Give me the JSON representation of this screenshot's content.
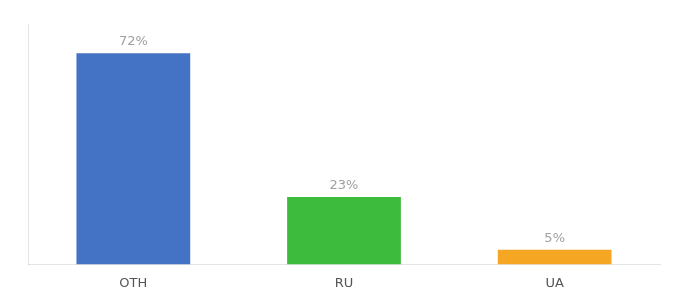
{
  "chart_data": {
    "type": "bar",
    "categories": [
      "OTH",
      "RU",
      "UA"
    ],
    "values": [
      72,
      23,
      5
    ],
    "value_labels": [
      "72%",
      "23%",
      "5%"
    ],
    "colors": [
      "#4472c4",
      "#3dbb3d",
      "#f5a623"
    ],
    "ylim": [
      0,
      82
    ],
    "grid": false,
    "data_labels": true,
    "tick_labels": "x"
  }
}
